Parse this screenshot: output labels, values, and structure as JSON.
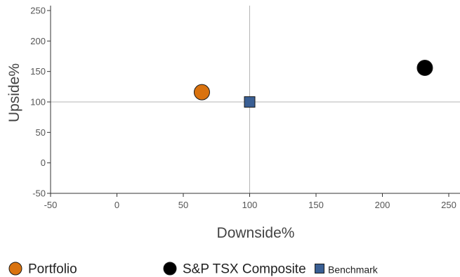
{
  "chart_data": {
    "type": "scatter",
    "xlabel": "Downside%",
    "ylabel": "Upside%",
    "xlim": [
      -50,
      260
    ],
    "ylim": [
      -50,
      260
    ],
    "xticks": [
      -50,
      0,
      50,
      100,
      150,
      200,
      250
    ],
    "yticks": [
      -50,
      0,
      50,
      100,
      150,
      200,
      250
    ],
    "reference_lines": {
      "x": 100,
      "y": 100
    },
    "grid": false,
    "legend_position": "bottom",
    "series": [
      {
        "name": "Portfolio",
        "x": 64,
        "y": 116,
        "marker": "circle",
        "color": "#d9720e"
      },
      {
        "name": "S&P TSX Composite",
        "x": 232,
        "y": 156,
        "marker": "circle",
        "color": "#000000"
      },
      {
        "name": "Benchmark",
        "x": 100,
        "y": 100,
        "marker": "square",
        "color": "#3a5f94"
      }
    ]
  }
}
